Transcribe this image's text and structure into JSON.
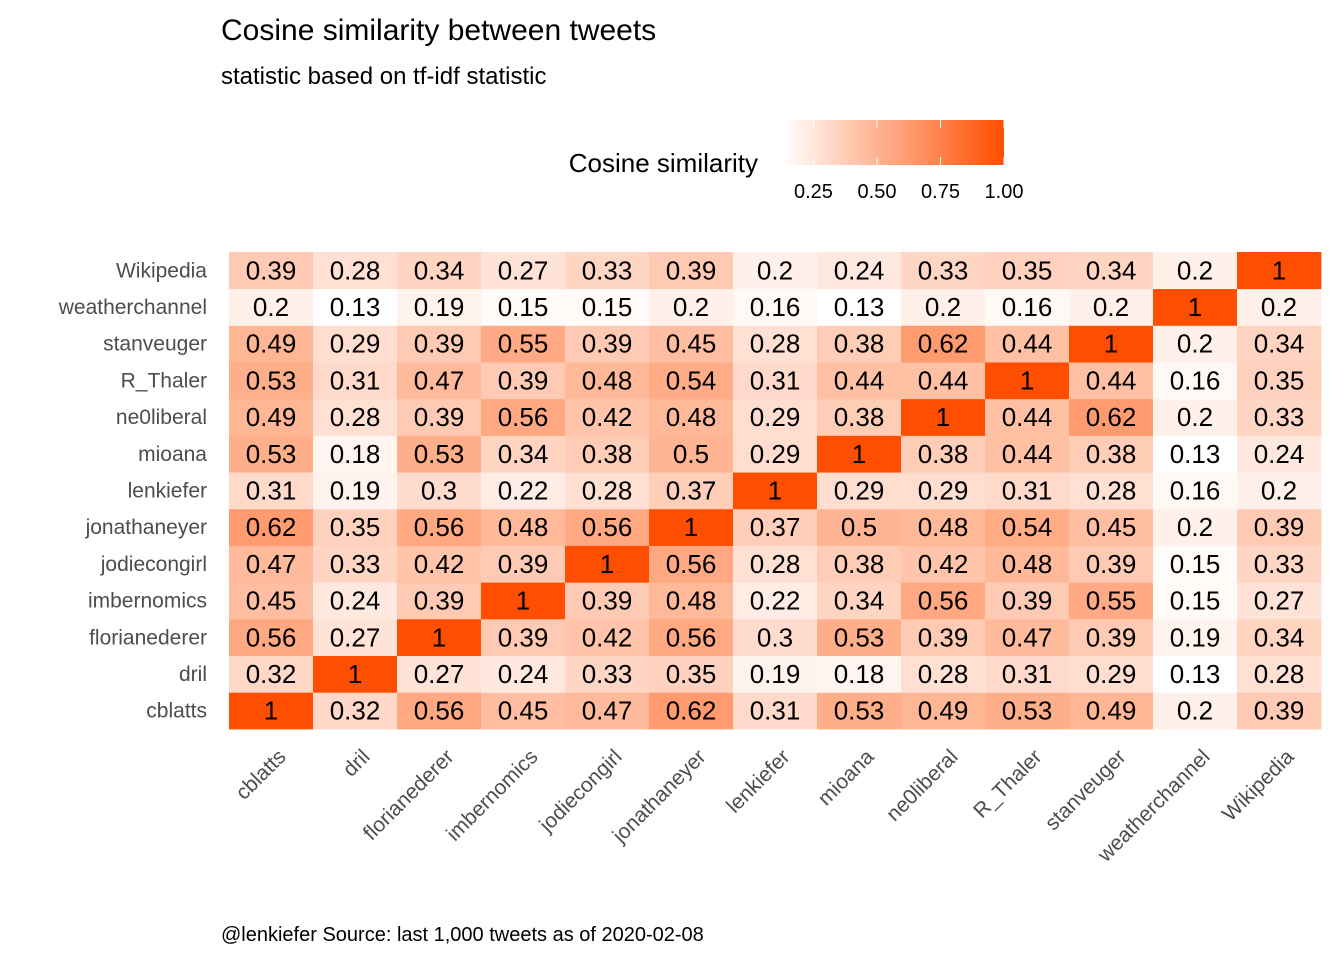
{
  "chart_data": {
    "type": "heatmap",
    "title": "Cosine similarity between tweets",
    "subtitle": "statistic based on tf-idf statistic",
    "caption": "@lenkiefer Source: last 1,000 tweets as of 2020-02-08",
    "legend": {
      "title": "Cosine similarity",
      "placement": "top",
      "ticks": [
        {
          "value": 0.25,
          "label": "0.25"
        },
        {
          "value": 0.5,
          "label": "0.50"
        },
        {
          "value": 0.75,
          "label": "0.75"
        },
        {
          "value": 1.0,
          "label": "1.00"
        }
      ],
      "low_color": "#ffffff",
      "high_color": "#ff4e00",
      "range": [
        0.13,
        1
      ]
    },
    "x_categories": [
      "cblatts",
      "dril",
      "florianederer",
      "imbernomics",
      "jodiecongirl",
      "jonathaneyer",
      "lenkiefer",
      "mioana",
      "ne0liberal",
      "R_Thaler",
      "stanveuger",
      "weatherchannel",
      "Wikipedia"
    ],
    "y_categories": [
      "cblatts",
      "dril",
      "florianederer",
      "imbernomics",
      "jodiecongirl",
      "jonathaneyer",
      "lenkiefer",
      "mioana",
      "ne0liberal",
      "R_Thaler",
      "stanveuger",
      "weatherchannel",
      "Wikipedia"
    ],
    "values": [
      [
        1,
        0.32,
        0.56,
        0.45,
        0.47,
        0.62,
        0.31,
        0.53,
        0.49,
        0.53,
        0.49,
        0.2,
        0.39
      ],
      [
        0.32,
        1,
        0.27,
        0.24,
        0.33,
        0.35,
        0.19,
        0.18,
        0.28,
        0.31,
        0.29,
        0.13,
        0.28
      ],
      [
        0.56,
        0.27,
        1,
        0.39,
        0.42,
        0.56,
        0.3,
        0.53,
        0.39,
        0.47,
        0.39,
        0.19,
        0.34
      ],
      [
        0.45,
        0.24,
        0.39,
        1,
        0.39,
        0.48,
        0.22,
        0.34,
        0.56,
        0.39,
        0.55,
        0.15,
        0.27
      ],
      [
        0.47,
        0.33,
        0.42,
        0.39,
        1,
        0.56,
        0.28,
        0.38,
        0.42,
        0.48,
        0.39,
        0.15,
        0.33
      ],
      [
        0.62,
        0.35,
        0.56,
        0.48,
        0.56,
        1,
        0.37,
        0.5,
        0.48,
        0.54,
        0.45,
        0.2,
        0.39
      ],
      [
        0.31,
        0.19,
        0.3,
        0.22,
        0.28,
        0.37,
        1,
        0.29,
        0.29,
        0.31,
        0.28,
        0.16,
        0.2
      ],
      [
        0.53,
        0.18,
        0.53,
        0.34,
        0.38,
        0.5,
        0.29,
        1,
        0.38,
        0.44,
        0.38,
        0.13,
        0.24
      ],
      [
        0.49,
        0.28,
        0.39,
        0.56,
        0.42,
        0.48,
        0.29,
        0.38,
        1,
        0.44,
        0.62,
        0.2,
        0.33
      ],
      [
        0.53,
        0.31,
        0.47,
        0.39,
        0.48,
        0.54,
        0.31,
        0.44,
        0.44,
        1,
        0.44,
        0.16,
        0.35
      ],
      [
        0.49,
        0.29,
        0.39,
        0.55,
        0.39,
        0.45,
        0.28,
        0.38,
        0.62,
        0.44,
        1,
        0.2,
        0.34
      ],
      [
        0.2,
        0.13,
        0.19,
        0.15,
        0.15,
        0.2,
        0.16,
        0.13,
        0.2,
        0.16,
        0.2,
        1,
        0.2
      ],
      [
        0.39,
        0.28,
        0.34,
        0.27,
        0.33,
        0.39,
        0.2,
        0.24,
        0.33,
        0.35,
        0.34,
        0.2,
        1
      ]
    ],
    "grid": false
  }
}
